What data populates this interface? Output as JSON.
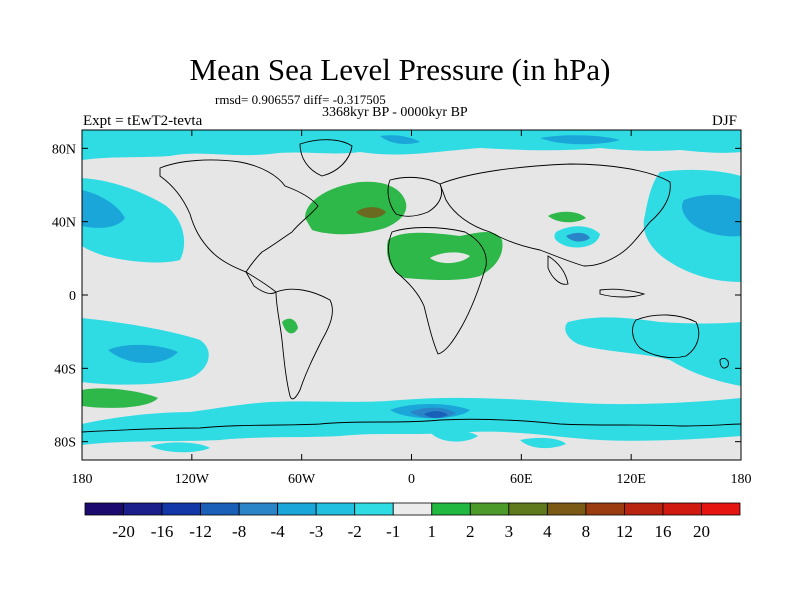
{
  "header": {
    "title": "Mean Sea Level Pressure (in hPa)",
    "stats": "rmsd= 0.906557 diff= -0.317505",
    "period": "3368kyr BP - 0000kyr BP",
    "experiment": "Expt = tEwT2-tevta",
    "season": "DJF"
  },
  "axes": {
    "y_ticks": [
      {
        "value": 80,
        "label": "80N"
      },
      {
        "value": 40,
        "label": "40N"
      },
      {
        "value": 0,
        "label": "0"
      },
      {
        "value": -40,
        "label": "40S"
      },
      {
        "value": -80,
        "label": "80S"
      }
    ],
    "x_ticks": [
      {
        "value": -180,
        "label": "180"
      },
      {
        "value": -120,
        "label": "120W"
      },
      {
        "value": -60,
        "label": "60W"
      },
      {
        "value": 0,
        "label": "0"
      },
      {
        "value": 60,
        "label": "60E"
      },
      {
        "value": 120,
        "label": "120E"
      },
      {
        "value": 180,
        "label": "180"
      }
    ],
    "lon_range": [
      -180,
      180
    ],
    "lat_range": [
      -90,
      90
    ]
  },
  "colorbar": {
    "labels": [
      "-20",
      "-16",
      "-12",
      "-8",
      "-4",
      "-3",
      "-2",
      "-1",
      "1",
      "2",
      "3",
      "4",
      "8",
      "12",
      "16",
      "20"
    ],
    "colors": [
      "#1c0a6e",
      "#1a1f8c",
      "#1437a8",
      "#1a5fb8",
      "#2a84c8",
      "#1aa6d8",
      "#22c0e0",
      "#30dce4",
      "#ececec",
      "#20b840",
      "#4c9a2a",
      "#5e7a1c",
      "#7a5a14",
      "#9a3c10",
      "#b82410",
      "#d01a10",
      "#e61410"
    ]
  },
  "colors": {
    "neutral": "#e6e6e6",
    "anom_neg_1": "#30dce4",
    "anom_neg_2": "#1aa6d8",
    "anom_neg_3": "#2a84c8",
    "anom_neg_4": "#1a5fb8",
    "anom_pos_1": "#2fb84a",
    "anom_pos_2": "#4c9a2a",
    "anom_pos_3": "#6a6a20",
    "coast": "#000000"
  }
}
